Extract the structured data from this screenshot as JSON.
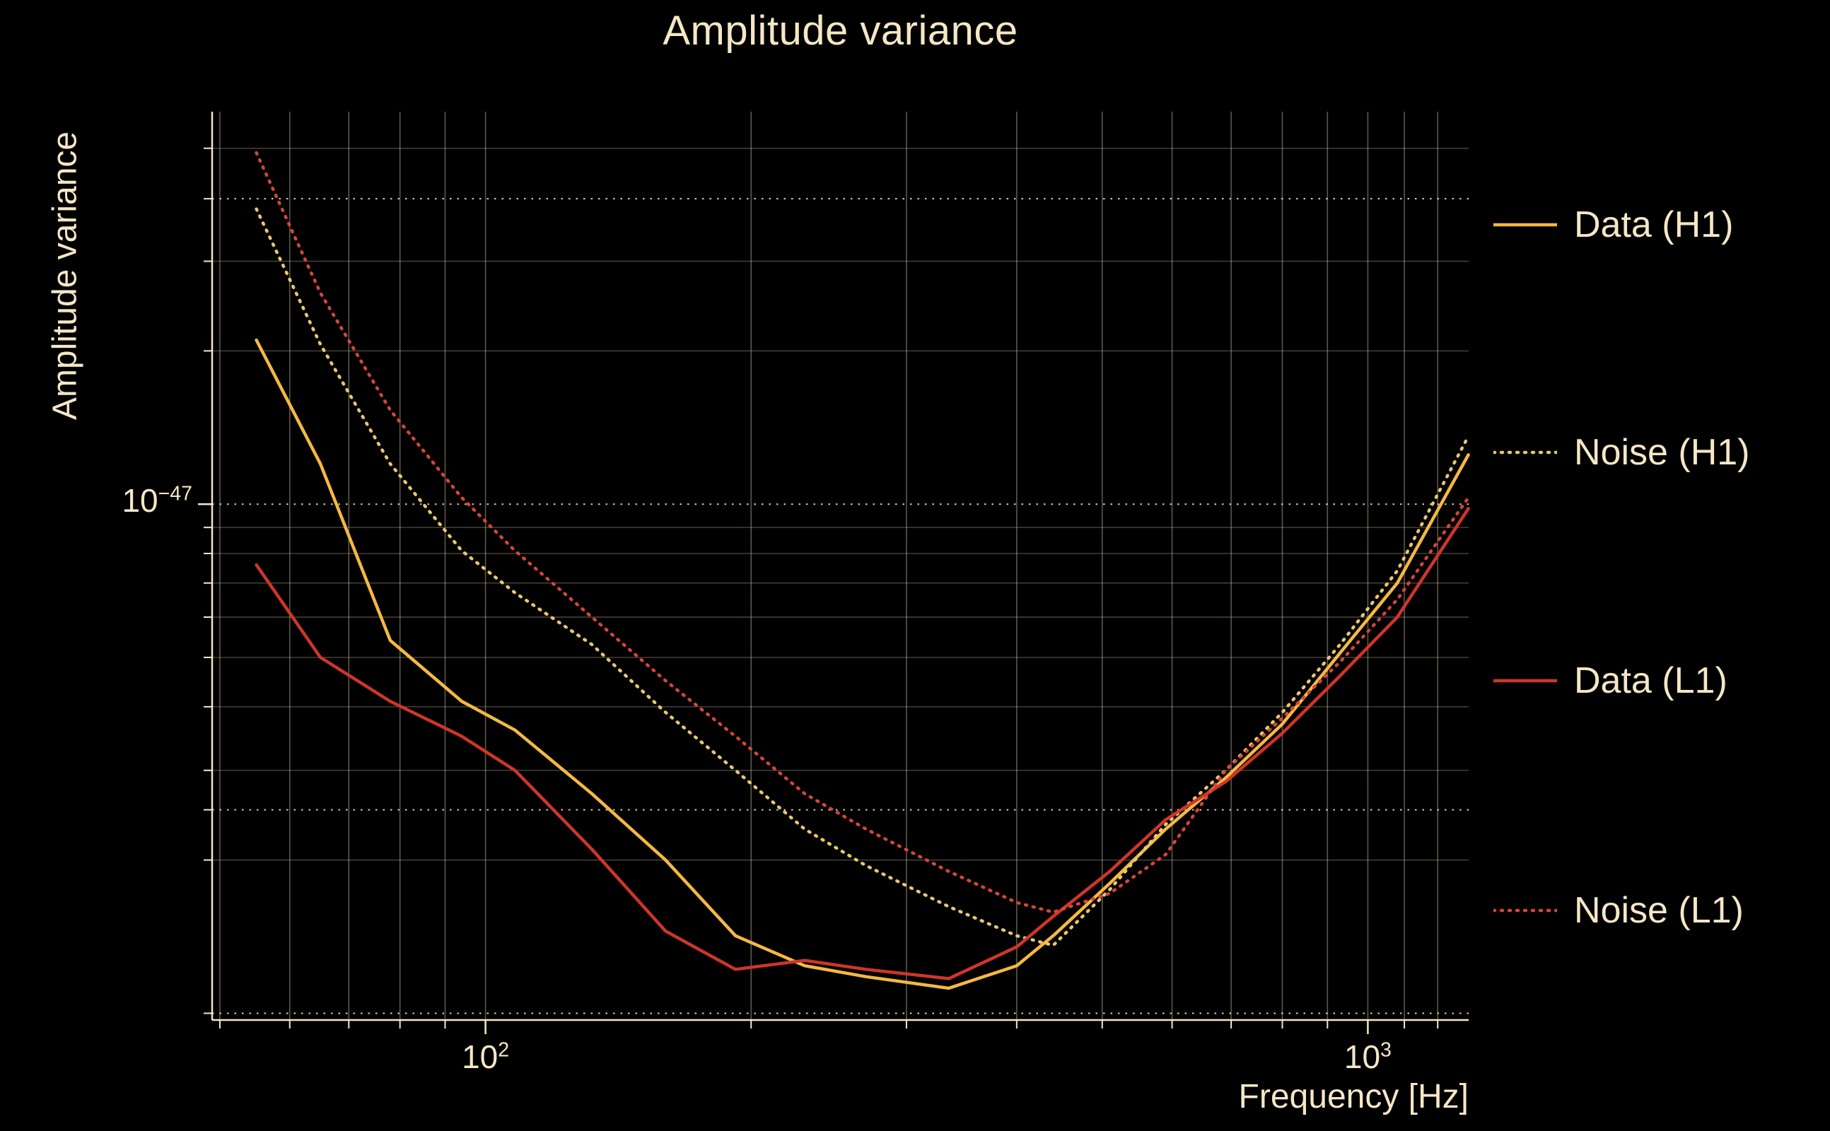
{
  "colors": {
    "background": "#000000",
    "text": "#f5e7c6",
    "grid": "#f5e7c6",
    "gold_solid": "#f4b942",
    "gold_dotted": "#e6c86e",
    "red_solid": "#cf352a",
    "red_dotted": "#d6453a"
  },
  "axes": {
    "x_ticks": [
      {
        "base": "10",
        "exp": "2"
      },
      {
        "base": "10",
        "exp": "3"
      }
    ],
    "y_ticks": [
      {
        "base": "10",
        "exp": "−47"
      }
    ]
  },
  "legend": {
    "items": [
      {
        "label": "Data (H1)",
        "series_index": 0
      },
      {
        "label": "Noise (H1)",
        "series_index": 1
      },
      {
        "label": "Data (L1)",
        "series_index": 2
      },
      {
        "label": "Noise (L1)",
        "series_index": 3
      }
    ]
  },
  "chart_data": {
    "type": "line",
    "title": "Amplitude variance",
    "xlabel": "Frequency [Hz]",
    "ylabel": "Amplitude variance",
    "x_scale": "log",
    "y_scale": "log",
    "xlim": [
      49,
      1301
    ],
    "ylim": [
      9.7e-49,
      5.9e-47
    ],
    "value_scale": 1e-48,
    "x": [
      55,
      65,
      78,
      94,
      108,
      132,
      160,
      192,
      230,
      270,
      335,
      400,
      440,
      510,
      590,
      690,
      800,
      930,
      1080,
      1300
    ],
    "series": [
      {
        "name": "Data (H1)",
        "color": "#f4b942",
        "dash": "solid",
        "values": [
          21,
          12,
          5.4,
          4.1,
          3.6,
          2.7,
          2.0,
          1.42,
          1.24,
          1.18,
          1.12,
          1.24,
          1.42,
          1.8,
          2.3,
          2.9,
          3.7,
          5.1,
          7.0,
          12.5
        ]
      },
      {
        "name": "Noise (H1)",
        "color": "#e6c86e",
        "dash": "dotted",
        "values": [
          38,
          20.6,
          12,
          8.1,
          6.7,
          5.3,
          3.9,
          3.0,
          2.3,
          1.95,
          1.62,
          1.42,
          1.36,
          1.75,
          2.35,
          3.0,
          3.9,
          5.3,
          7.4,
          13.6
        ]
      },
      {
        "name": "Data (L1)",
        "color": "#cf352a",
        "dash": "solid",
        "values": [
          7.6,
          5.0,
          4.1,
          3.5,
          3.0,
          2.1,
          1.45,
          1.22,
          1.27,
          1.22,
          1.17,
          1.35,
          1.55,
          1.9,
          2.4,
          2.85,
          3.55,
          4.6,
          6.0,
          9.8
        ]
      },
      {
        "name": "Noise (L1)",
        "color": "#d6453a",
        "dash": "dotted",
        "values": [
          49,
          26,
          15.3,
          10.3,
          8.1,
          6.0,
          4.5,
          3.5,
          2.7,
          2.3,
          1.9,
          1.65,
          1.58,
          1.72,
          2.05,
          3.0,
          3.8,
          4.9,
          6.5,
          10.3
        ]
      }
    ],
    "grid": {
      "x_lines": [
        50,
        60,
        70,
        80,
        90,
        100,
        200,
        300,
        400,
        500,
        600,
        700,
        800,
        900,
        1000,
        1100,
        1200
      ],
      "y_dotted": [
        3.98e-47,
        1e-47,
        2.51e-48,
        1e-48
      ],
      "y_minor": [
        5e-47,
        3e-47,
        2e-47,
        9e-48,
        8e-48,
        7e-48,
        6e-48,
        5e-48,
        4e-48,
        3e-48,
        2e-48
      ]
    },
    "ticks": {
      "x_major": [
        100,
        1000
      ],
      "x_minor": [
        50,
        60,
        70,
        80,
        90,
        200,
        300,
        400,
        500,
        600,
        700,
        800,
        900,
        1100,
        1200
      ],
      "y_major": [
        1e-47
      ],
      "y_minor": [
        5e-47,
        3.98e-47,
        3e-47,
        2e-47,
        9e-48,
        8e-48,
        7e-48,
        6e-48,
        5e-48,
        4e-48,
        3e-48,
        2.51e-48,
        2e-48,
        1e-48
      ],
      "x_label_values": [
        100,
        1000
      ],
      "y_label_value": 1e-47
    },
    "legend_position": "outside-right"
  }
}
